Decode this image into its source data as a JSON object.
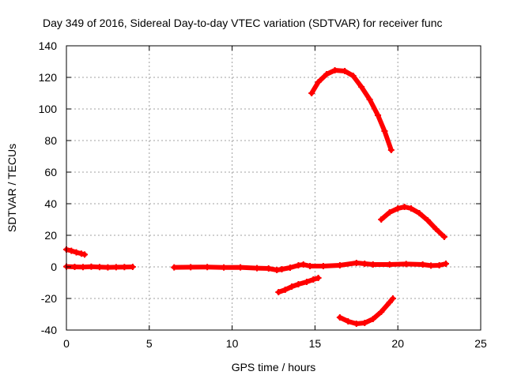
{
  "chart_data": {
    "type": "scatter",
    "title": "Day 349 of 2016, Sidereal Day-to-day VTEC variation (SDTVAR) for receiver func",
    "xlabel": "GPS time / hours",
    "ylabel": "SDTVAR / TECUs",
    "xlim": [
      0,
      25
    ],
    "ylim": [
      -40,
      140
    ],
    "xticks": [
      "0",
      "5",
      "10",
      "15",
      "20",
      "25"
    ],
    "yticks": [
      "-40",
      "-20",
      "0",
      "20",
      "40",
      "60",
      "80",
      "100",
      "120",
      "140"
    ],
    "grid": true,
    "color": "#ff0000",
    "series": [
      {
        "points": [
          [
            0.0,
            11.0
          ],
          [
            0.3,
            10.2
          ],
          [
            0.6,
            9.2
          ],
          [
            0.9,
            8.4
          ],
          [
            1.1,
            7.8
          ]
        ]
      },
      {
        "points": [
          [
            0.0,
            0.2
          ],
          [
            0.5,
            0.0
          ],
          [
            1.0,
            -0.1
          ],
          [
            1.5,
            0.1
          ],
          [
            2.0,
            -0.1
          ],
          [
            2.5,
            -0.3
          ],
          [
            3.0,
            -0.2
          ],
          [
            3.5,
            -0.1
          ],
          [
            4.0,
            0.0
          ]
        ]
      },
      {
        "points": [
          [
            6.5,
            -0.3
          ],
          [
            7.5,
            -0.2
          ],
          [
            8.5,
            -0.1
          ],
          [
            9.5,
            -0.4
          ],
          [
            10.5,
            -0.3
          ],
          [
            11.5,
            -0.8
          ],
          [
            12.2,
            -1.0
          ],
          [
            12.7,
            -2.0
          ],
          [
            13.0,
            -1.5
          ],
          [
            13.5,
            -0.5
          ],
          [
            14.0,
            1.0
          ],
          [
            14.3,
            1.5
          ],
          [
            14.7,
            0.5
          ],
          [
            15.5,
            0.5
          ],
          [
            16.5,
            1.0
          ],
          [
            17.5,
            2.5
          ],
          [
            18.0,
            2.0
          ],
          [
            18.5,
            1.5
          ],
          [
            19.5,
            1.5
          ],
          [
            20.5,
            1.8
          ],
          [
            21.5,
            1.5
          ],
          [
            22.0,
            0.8
          ],
          [
            22.5,
            1.0
          ],
          [
            22.9,
            2.0
          ]
        ]
      },
      {
        "points": [
          [
            12.8,
            -16.0
          ],
          [
            13.2,
            -14.5
          ],
          [
            13.6,
            -12.5
          ],
          [
            14.0,
            -11.0
          ],
          [
            14.5,
            -9.5
          ],
          [
            14.9,
            -8.0
          ],
          [
            15.2,
            -7.0
          ]
        ]
      },
      {
        "points": [
          [
            14.8,
            110.0
          ],
          [
            15.2,
            117.0
          ],
          [
            15.7,
            122.0
          ],
          [
            16.2,
            124.5
          ],
          [
            16.8,
            124.0
          ],
          [
            17.3,
            121.0
          ],
          [
            17.8,
            114.0
          ],
          [
            18.3,
            106.0
          ],
          [
            18.8,
            96.0
          ],
          [
            19.2,
            86.0
          ],
          [
            19.6,
            74.0
          ]
        ]
      },
      {
        "points": [
          [
            19.0,
            30.0
          ],
          [
            19.5,
            34.5
          ],
          [
            20.0,
            37.0
          ],
          [
            20.4,
            38.0
          ],
          [
            20.8,
            37.0
          ],
          [
            21.3,
            34.0
          ],
          [
            21.8,
            29.5
          ],
          [
            22.3,
            24.0
          ],
          [
            22.8,
            19.0
          ]
        ]
      },
      {
        "points": [
          [
            16.5,
            -32.0
          ],
          [
            17.0,
            -34.5
          ],
          [
            17.5,
            -36.0
          ],
          [
            18.0,
            -35.5
          ],
          [
            18.5,
            -33.0
          ],
          [
            19.0,
            -28.5
          ],
          [
            19.5,
            -22.5
          ],
          [
            19.7,
            -20.0
          ]
        ]
      }
    ]
  }
}
